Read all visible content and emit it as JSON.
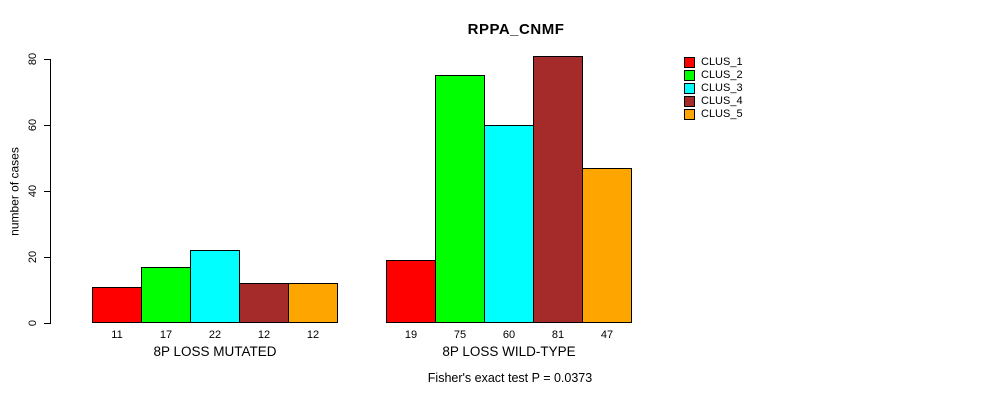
{
  "chart_data": {
    "type": "bar",
    "title": "RPPA_CNMF",
    "subtitle": "Fisher's exact test P = 0.0373",
    "xlabel": "",
    "ylabel": "number of cases",
    "categories": [
      "8P LOSS MUTATED",
      "8P LOSS WILD-TYPE"
    ],
    "series": [
      {
        "name": "CLUS_1",
        "color": "#FF0000",
        "values": [
          11,
          19
        ]
      },
      {
        "name": "CLUS_2",
        "color": "#00FF00",
        "values": [
          17,
          75
        ]
      },
      {
        "name": "CLUS_3",
        "color": "#00FFFF",
        "values": [
          22,
          60
        ]
      },
      {
        "name": "CLUS_4",
        "color": "#A52A2A",
        "values": [
          12,
          81
        ]
      },
      {
        "name": "CLUS_5",
        "color": "#FFA500",
        "values": [
          12,
          47
        ]
      }
    ],
    "bar_value_labels": [
      [
        11,
        17,
        22,
        12,
        12
      ],
      [
        19,
        75,
        60,
        81,
        47
      ]
    ],
    "ylim": [
      0,
      80
    ],
    "yticks": [
      0,
      20,
      40,
      60,
      80
    ],
    "grid": false,
    "legend_position": "right",
    "background_color": "#FFFFFF",
    "axis_color": "#000000"
  }
}
